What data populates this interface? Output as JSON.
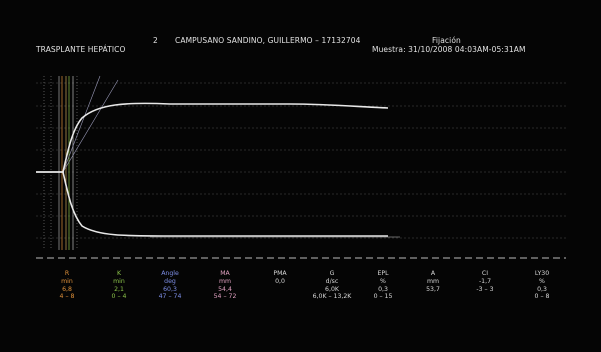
{
  "header": {
    "patient_id": "2",
    "patient_name": "CAMPUSANO SANDINO, GUILLERMO – 17132704",
    "status": "Fijación",
    "procedure": "TRASPLANTE HEPÁTICO",
    "sample": "Muestra: 31/10/2008 04:03AM-05:31AM"
  },
  "colors": {
    "background": "#050505",
    "trace": "#e8e8e8",
    "grid": "#8a8a8a",
    "r_color": "#e0913a",
    "k_color": "#8bc34a",
    "angle_color": "#7e8fe8",
    "ma_color": "#e0a0c0",
    "neutral": "#d8d8d8"
  },
  "params": [
    {
      "name": "R",
      "unit": "min",
      "value": "6,8",
      "range": "4 – 8",
      "color": "#e0913a"
    },
    {
      "name": "K",
      "unit": "min",
      "value": "2,1",
      "range": "0 – 4",
      "color": "#8bc34a"
    },
    {
      "name": "Angle",
      "unit": "deg",
      "value": "60,3",
      "range": "47 – 74",
      "color": "#7e8fe8"
    },
    {
      "name": "MA",
      "unit": "mm",
      "value": "54,4",
      "range": "54 – 72",
      "color": "#e0a0c0"
    },
    {
      "name": "PMA",
      "unit": "",
      "value": "0,0",
      "range": "",
      "color": "#d8d8d8"
    },
    {
      "name": "G",
      "unit": "d/sc",
      "value": "6,0K",
      "range": "6,0K – 13,2K",
      "color": "#d8d8d8"
    },
    {
      "name": "EPL",
      "unit": "%",
      "value": "0,3",
      "range": "0 – 15",
      "color": "#d8d8d8"
    },
    {
      "name": "A",
      "unit": "mm",
      "value": "53,7",
      "range": "",
      "color": "#d8d8d8"
    },
    {
      "name": "CI",
      "unit": "",
      "value": "-1,7",
      "range": "-3 – 3",
      "color": "#d8d8d8"
    },
    {
      "name": "LY30",
      "unit": "%",
      "value": "0,3",
      "range": "0 – 8",
      "color": "#d8d8d8"
    }
  ]
}
